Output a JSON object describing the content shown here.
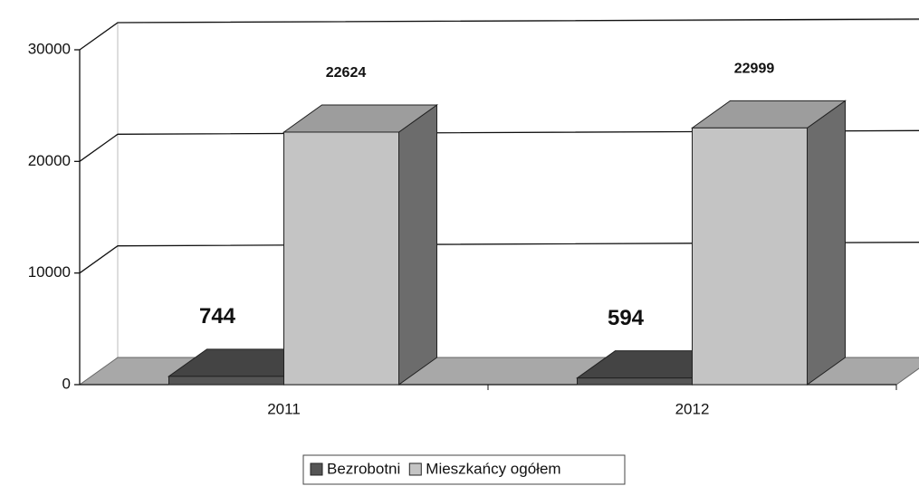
{
  "chart_data": {
    "type": "bar3d",
    "categories": [
      "2011",
      "2012"
    ],
    "series": [
      {
        "name": "Bezrobotni",
        "color": "#555555",
        "values": [
          744,
          594
        ]
      },
      {
        "name": "Mieszkańcy ogółem",
        "color": "#c4c4c4",
        "values": [
          22624,
          22999
        ]
      }
    ],
    "ylim": [
      0,
      30000
    ],
    "yticks": [
      0,
      10000,
      20000,
      30000
    ],
    "grid": true,
    "legend": "bottom"
  }
}
